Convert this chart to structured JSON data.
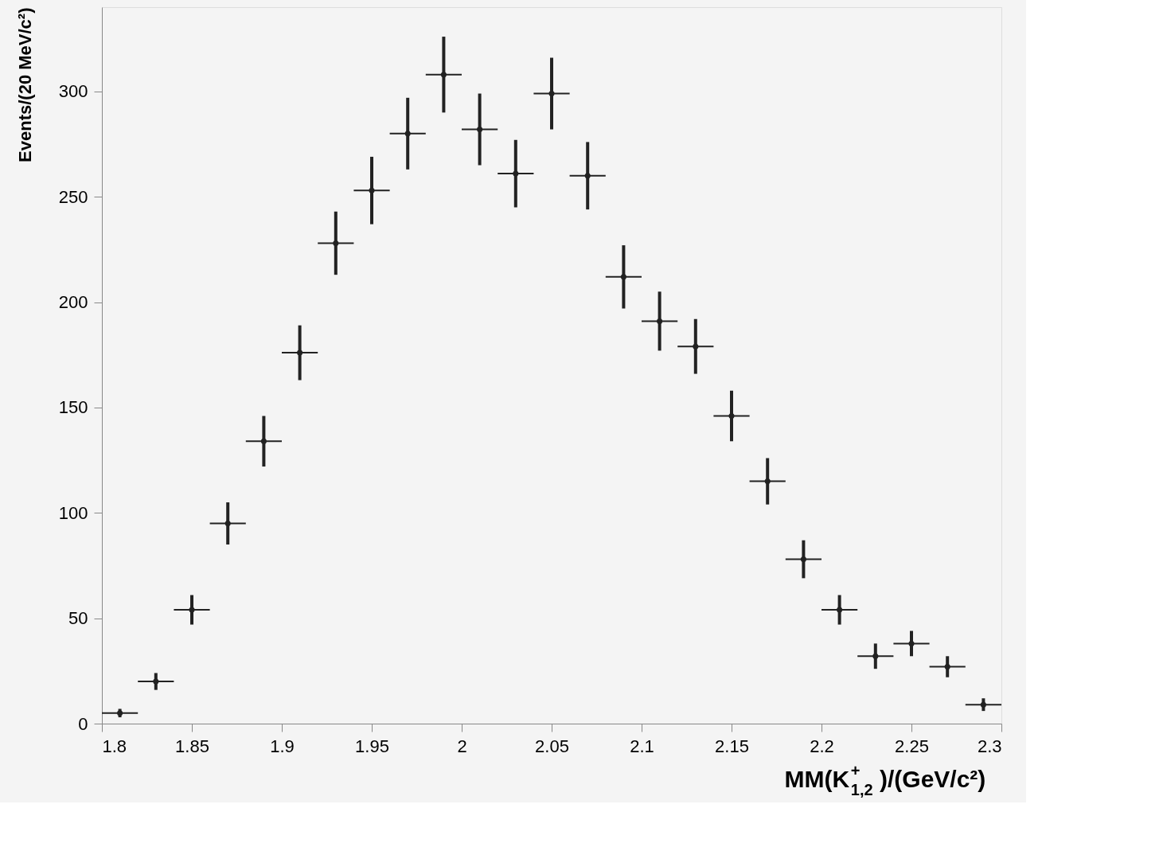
{
  "chart_data": {
    "type": "scatter",
    "xlabel": "MM(K$^{+}$$_{1,2}$)/(GeV/c²)",
    "ylabel": "Events/(20 MeV/c²)",
    "x": [
      1.81,
      1.83,
      1.85,
      1.87,
      1.89,
      1.91,
      1.93,
      1.95,
      1.97,
      1.99,
      2.01,
      2.03,
      2.05,
      2.07,
      2.09,
      2.11,
      2.13,
      2.15,
      2.17,
      2.19,
      2.21,
      2.23,
      2.25,
      2.27,
      2.29
    ],
    "series": [
      {
        "color": "#222222",
        "values": [
          5,
          20,
          54,
          95,
          134,
          176,
          228,
          253,
          280,
          308,
          282,
          261,
          299,
          260,
          212,
          191,
          179,
          146,
          115,
          78,
          54,
          32,
          38,
          27,
          9
        ],
        "errors": [
          2,
          4,
          7,
          10,
          12,
          13,
          15,
          16,
          17,
          18,
          17,
          16,
          17,
          16,
          15,
          14,
          13,
          12,
          11,
          9,
          7,
          6,
          6,
          5,
          3
        ],
        "xerrors": [
          0.01,
          0.01,
          0.01,
          0.01,
          0.01,
          0.01,
          0.01,
          0.01,
          0.01,
          0.01,
          0.01,
          0.01,
          0.01,
          0.01,
          0.01,
          0.01,
          0.01,
          0.01,
          0.01,
          0.01,
          0.01,
          0.01,
          0.01,
          0.01,
          0.01
        ]
      }
    ],
    "xlim": [
      1.8,
      2.3
    ],
    "xticks": [
      1.8,
      1.85,
      1.9,
      1.95,
      2,
      2.05,
      2.1,
      2.15,
      2.2,
      2.25,
      2.3
    ],
    "ylim": [
      0,
      340
    ],
    "yticks": [
      0,
      50,
      100,
      150,
      200,
      250,
      300
    ],
    "marker": "circle",
    "grid": false
  }
}
